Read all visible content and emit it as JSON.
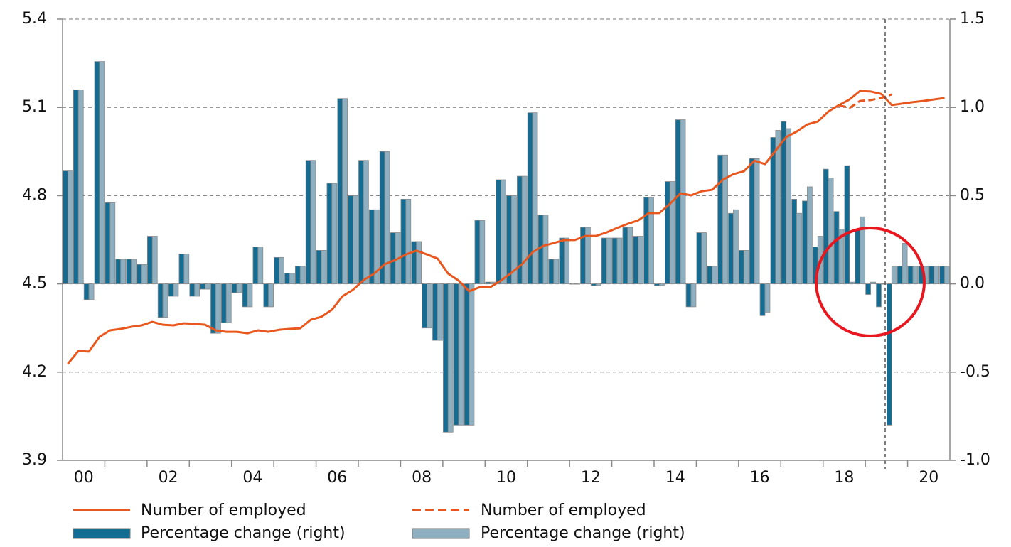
{
  "chart_data": {
    "type": "bar",
    "categories": [
      null,
      "00",
      null,
      null,
      null,
      null,
      null,
      null,
      null,
      "02",
      null,
      null,
      null,
      null,
      null,
      null,
      null,
      "04",
      null,
      null,
      null,
      null,
      null,
      null,
      null,
      "06",
      null,
      null,
      null,
      null,
      null,
      null,
      null,
      "08",
      null,
      null,
      null,
      null,
      null,
      null,
      null,
      "10",
      null,
      null,
      null,
      null,
      null,
      null,
      null,
      "12",
      null,
      null,
      null,
      null,
      null,
      null,
      null,
      "14",
      null,
      null,
      null,
      null,
      null,
      null,
      null,
      "16",
      null,
      null,
      null,
      null,
      null,
      null,
      null,
      "18",
      null,
      null,
      null,
      null,
      null,
      null,
      null,
      "20",
      null,
      null
    ],
    "ylim": [
      3.9,
      5.4
    ],
    "yticks": [
      3.9,
      4.2,
      4.5,
      4.8,
      5.1,
      5.4
    ],
    "y2lim": [
      -1.0,
      1.5
    ],
    "y2ticks": [
      {
        "value": -1.0,
        "label": "-1.0"
      },
      -0.5,
      {
        "value": 0,
        "label": "0.0"
      },
      0.5,
      {
        "value": 1.0,
        "label": "1.0"
      },
      1.5
    ],
    "grid": true,
    "series": [
      {
        "name": "Number of employed",
        "type": "line",
        "dashed": false,
        "color": "#e8581e",
        "values": [
          4.228,
          4.272,
          4.27,
          4.32,
          4.342,
          4.347,
          4.354,
          4.359,
          4.371,
          4.361,
          4.359,
          4.366,
          4.364,
          4.361,
          4.342,
          4.337,
          4.337,
          4.332,
          4.342,
          4.337,
          4.344,
          4.347,
          4.349,
          4.378,
          4.388,
          4.412,
          4.458,
          4.48,
          4.513,
          4.535,
          4.567,
          4.581,
          4.6,
          4.613,
          4.6,
          4.586,
          4.535,
          4.511,
          4.475,
          4.489,
          4.489,
          4.511,
          4.538,
          4.567,
          4.608,
          4.629,
          4.639,
          4.649,
          4.649,
          4.663,
          4.663,
          4.675,
          4.69,
          4.704,
          4.716,
          4.741,
          4.741,
          4.772,
          4.808,
          4.801,
          4.815,
          4.82,
          4.854,
          4.873,
          4.883,
          4.919,
          4.907,
          4.953,
          4.999,
          5.018,
          5.042,
          5.052,
          5.086,
          5.108,
          5.127,
          5.156,
          5.154,
          5.146,
          5.108,
          5.113,
          5.118,
          5.122,
          5.127,
          5.132
        ]
      },
      {
        "name": "Number of employed",
        "type": "line",
        "dashed": true,
        "color": "#e8581e",
        "values": [
          null,
          null,
          null,
          null,
          null,
          null,
          null,
          null,
          null,
          null,
          null,
          null,
          null,
          null,
          null,
          null,
          null,
          null,
          null,
          null,
          null,
          null,
          null,
          null,
          null,
          null,
          null,
          null,
          null,
          null,
          null,
          null,
          null,
          null,
          null,
          null,
          null,
          null,
          null,
          null,
          null,
          null,
          null,
          null,
          null,
          null,
          null,
          null,
          null,
          null,
          null,
          null,
          null,
          null,
          null,
          null,
          null,
          null,
          null,
          null,
          null,
          null,
          null,
          null,
          null,
          null,
          null,
          null,
          null,
          null,
          null,
          null,
          null,
          5.108,
          5.098,
          5.122,
          5.125,
          5.132,
          5.144,
          null,
          null,
          null,
          null,
          null
        ]
      },
      {
        "name": "Percentage change (right)",
        "type": "bar",
        "axis": "y2",
        "color": "#146c93",
        "values": [
          0.64,
          1.1,
          -0.09,
          1.26,
          0.46,
          0.14,
          0.14,
          0.11,
          0.27,
          -0.19,
          -0.07,
          0.17,
          -0.07,
          -0.03,
          -0.28,
          -0.22,
          -0.05,
          -0.13,
          0.21,
          -0.13,
          0.15,
          0.06,
          0.1,
          0.7,
          0.19,
          0.57,
          1.05,
          0.5,
          0.7,
          0.42,
          0.75,
          0.29,
          0.48,
          0.24,
          -0.25,
          -0.32,
          -0.84,
          -0.8,
          -0.8,
          0.36,
          0.01,
          0.59,
          0.5,
          0.61,
          0.97,
          0.39,
          0.14,
          0.26,
          0.0,
          0.32,
          -0.01,
          0.26,
          0.26,
          0.32,
          0.27,
          0.49,
          -0.01,
          0.58,
          0.93,
          -0.13,
          0.29,
          0.1,
          0.73,
          0.4,
          0.19,
          0.71,
          -0.18,
          0.83,
          0.92,
          0.48,
          0.47,
          0.21,
          0.65,
          0.41,
          0.67,
          0.31,
          -0.06,
          -0.13,
          -0.8,
          0.1,
          0.1,
          0.1,
          0.1,
          0.1
        ]
      },
      {
        "name": "Percentage change (right)",
        "type": "bar",
        "axis": "y2",
        "color": "#8eafc0",
        "values": [
          0.64,
          1.1,
          -0.09,
          1.26,
          0.46,
          0.14,
          0.14,
          0.11,
          0.27,
          -0.19,
          -0.07,
          0.17,
          -0.07,
          -0.03,
          -0.28,
          -0.22,
          -0.05,
          -0.13,
          0.21,
          -0.13,
          0.15,
          0.06,
          0.1,
          0.7,
          0.19,
          0.57,
          1.05,
          0.5,
          0.7,
          0.42,
          0.75,
          0.29,
          0.48,
          0.24,
          -0.25,
          -0.32,
          -0.84,
          -0.8,
          -0.8,
          0.36,
          0.01,
          0.59,
          0.5,
          0.61,
          0.97,
          0.39,
          0.14,
          0.26,
          0.0,
          0.32,
          -0.01,
          0.26,
          0.26,
          0.32,
          0.27,
          0.49,
          -0.01,
          0.58,
          0.93,
          -0.13,
          0.29,
          0.1,
          0.73,
          0.42,
          0.19,
          0.71,
          -0.16,
          0.87,
          0.88,
          0.4,
          0.55,
          0.27,
          0.6,
          0.31,
          0.01,
          0.38,
          0.01,
          0.0,
          0.1,
          0.23,
          0.1,
          0.1,
          0.1,
          0.1
        ]
      }
    ]
  }
}
